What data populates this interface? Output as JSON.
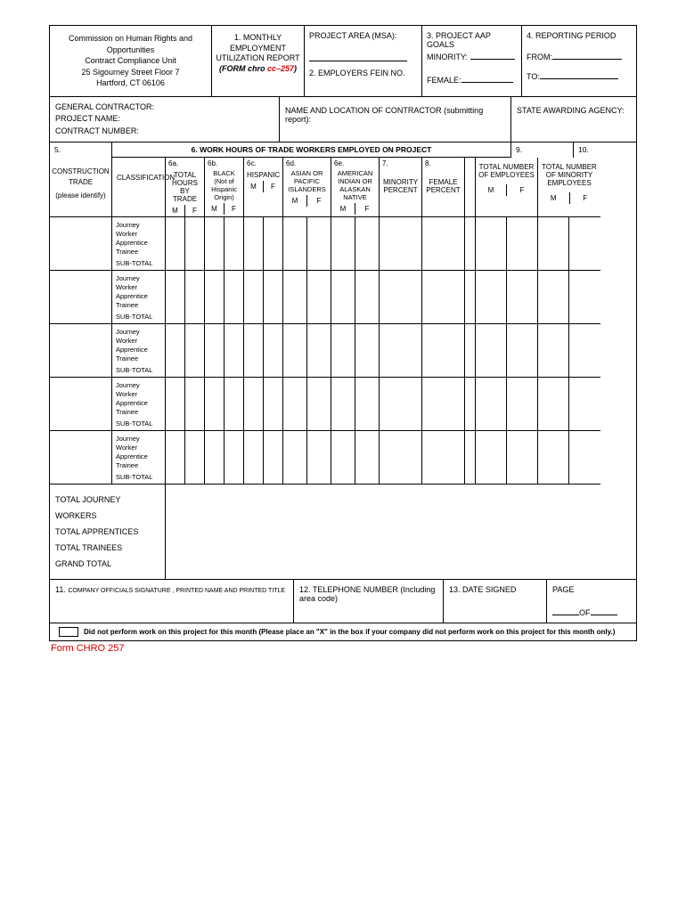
{
  "header": {
    "org1": "Commission on Human Rights and Opportunities",
    "org2": "Contract Compliance Unit",
    "addr1": "25 Sigourney Street Floor 7",
    "addr2": "Hartford, CT 06106",
    "title1": "1. MONTHLY",
    "title2": "EMPLOYMENT",
    "title3": "UTILIZATION REPORT",
    "formLabel": "(FORM chro ",
    "formCode": "cc–257",
    "formClose": ")",
    "projectArea": "PROJECT  AREA (MSA):",
    "fein": "2. EMPLOYERS FEIN  NO.",
    "aap": "3. PROJECT AAP GOALS",
    "minority": "MINORITY:",
    "female": "FEMALE:",
    "reporting": "4. REPORTING PERIOD",
    "from": "FROM:",
    "to": "TO:"
  },
  "row2": {
    "gc": "GENERAL CONTRACTOR:",
    "pn": "PROJECT NAME:",
    "cn": "CONTRACT NUMBER:",
    "nameLoc": "NAME AND LOCATION OF CONTRACTOR (submitting report):",
    "agency": "STATE AWARDING AGENCY:"
  },
  "section6": {
    "s5": "5.",
    "s6": "6. WORK HOURS OF TRADE WORKERS EMPLOYED  ON PROJECT",
    "s9": "9.",
    "s10": "10.",
    "trade1": "CONSTRUCTION",
    "trade2": "TRADE",
    "trade3": "(please identify)",
    "classification": "CLASSIFICATION",
    "c6a": "6a.",
    "c6a2": "TOTAL HOURS BY TRADE",
    "c6b": "6b.",
    "c6b2": "BLACK (Not of Hispanic Origin)",
    "c6c": "6c.",
    "c6c2": "HISPANIC",
    "c6d": "6d.",
    "c6d2": "ASIAN OR PACIFIC ISLANDERS",
    "c6e": "6e.",
    "c6e2": "AMERICAN INDIAN OR ALASKAN NATIVE",
    "c7": "7.",
    "c7b": "MINORITY PERCENT",
    "c8": "8.",
    "c8b": "FEMALE PERCENT",
    "c9b": "TOTAL NUMBER OF EMPLOYEES",
    "c10b": "TOTAL NUMBER OF MINORITY EMPLOYEES",
    "m": "M",
    "f": "F"
  },
  "classLabels": {
    "jw": "Journey Worker",
    "ap": "Apprentice",
    "tr": "Trainee",
    "st": "SUB-TOTAL"
  },
  "totals": {
    "t1": "TOTAL JOURNEY WORKERS",
    "t2": "TOTAL APPRENTICES",
    "t3": "TOTAL TRAINEES",
    "t4": "GRAND TOTAL"
  },
  "footer": {
    "f11": "11.",
    "f11b": "COMPANY OFFICIALS SIGNATURE , PRINTED NAME AND PRINTED TITLE",
    "f12": "12. TELEPHONE NUMBER (Including area code)",
    "f13": "13. DATE SIGNED",
    "page": "PAGE",
    "of": "OF",
    "note": "Did not perform work on this project for this month (Please place an \"X\" in the box if your company did not perform work on this project for this month only.)"
  },
  "formId": "Form CHRO 257",
  "colors": {
    "border": "#000000",
    "text": "#000000",
    "red": "#d40000",
    "bg": "#ffffff"
  }
}
